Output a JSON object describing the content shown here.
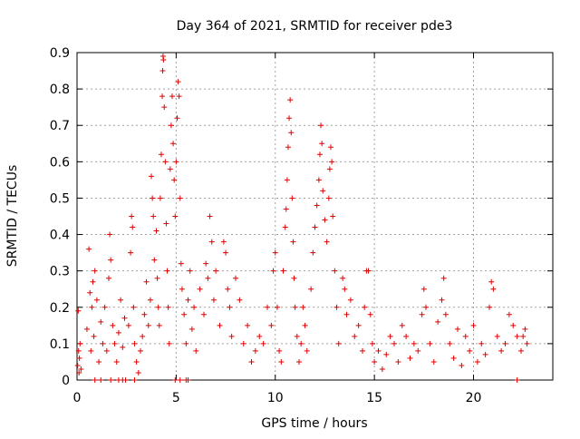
{
  "chart_data": {
    "type": "scatter",
    "title": "Day 364 of 2021, SRMTID for receiver pde3",
    "xlabel": "GPS time / hours",
    "ylabel": "SRMTID / TECUs",
    "xlim": [
      0,
      24
    ],
    "ylim": [
      0,
      0.9
    ],
    "xticks": [
      0,
      5,
      10,
      15,
      20
    ],
    "yticks": [
      0,
      0.1,
      0.2,
      0.3,
      0.4,
      0.5,
      0.6,
      0.7,
      0.8,
      0.9
    ],
    "grid": true,
    "legend": "none",
    "marker": "plus",
    "color": "#e00000",
    "series": [
      {
        "points": [
          [
            0.03,
            0.04
          ],
          [
            0.06,
            0.19
          ],
          [
            0.08,
            0.08
          ],
          [
            0.1,
            0.02
          ],
          [
            0.12,
            0.06
          ],
          [
            0.15,
            0.1
          ],
          [
            0.2,
            0.03
          ],
          [
            0.5,
            0.14
          ],
          [
            0.6,
            0.36
          ],
          [
            0.65,
            0.24
          ],
          [
            0.7,
            0.08
          ],
          [
            0.75,
            0.2
          ],
          [
            0.8,
            0.27
          ],
          [
            0.85,
            0.12
          ],
          [
            0.9,
            0.3
          ],
          [
            1.0,
            0.22
          ],
          [
            1.1,
            0.05
          ],
          [
            1.2,
            0.16
          ],
          [
            1.3,
            0.1
          ],
          [
            1.4,
            0.2
          ],
          [
            1.5,
            0.08
          ],
          [
            1.6,
            0.28
          ],
          [
            1.65,
            0.4
          ],
          [
            1.7,
            0.33
          ],
          [
            1.8,
            0.15
          ],
          [
            1.9,
            0.1
          ],
          [
            2.0,
            0.05
          ],
          [
            2.1,
            0.13
          ],
          [
            2.2,
            0.22
          ],
          [
            2.3,
            0.09
          ],
          [
            2.4,
            0.17
          ],
          [
            0.9,
            0.0
          ],
          [
            1.2,
            0.0
          ],
          [
            1.7,
            0.0
          ],
          [
            2.1,
            0.0
          ],
          [
            2.3,
            0.0
          ],
          [
            2.45,
            0.0
          ],
          [
            2.9,
            0.0
          ],
          [
            4.95,
            0.0
          ],
          [
            5.2,
            0.0
          ],
          [
            5.5,
            0.0
          ],
          [
            5.6,
            0.0
          ],
          [
            22.2,
            0.0
          ],
          [
            2.6,
            0.15
          ],
          [
            2.7,
            0.35
          ],
          [
            2.75,
            0.45
          ],
          [
            2.8,
            0.42
          ],
          [
            2.85,
            0.2
          ],
          [
            2.9,
            0.1
          ],
          [
            3.0,
            0.05
          ],
          [
            3.1,
            0.02
          ],
          [
            3.2,
            0.08
          ],
          [
            3.3,
            0.12
          ],
          [
            3.4,
            0.18
          ],
          [
            3.5,
            0.27
          ],
          [
            3.6,
            0.15
          ],
          [
            3.7,
            0.22
          ],
          [
            3.75,
            0.56
          ],
          [
            3.8,
            0.5
          ],
          [
            3.85,
            0.45
          ],
          [
            3.9,
            0.33
          ],
          [
            4.0,
            0.41
          ],
          [
            4.05,
            0.28
          ],
          [
            4.1,
            0.2
          ],
          [
            4.15,
            0.15
          ],
          [
            4.2,
            0.5
          ],
          [
            4.25,
            0.62
          ],
          [
            4.3,
            0.78
          ],
          [
            4.32,
            0.85
          ],
          [
            4.34,
            0.89
          ],
          [
            4.36,
            0.88
          ],
          [
            4.4,
            0.75
          ],
          [
            4.45,
            0.6
          ],
          [
            4.5,
            0.43
          ],
          [
            4.55,
            0.3
          ],
          [
            4.6,
            0.2
          ],
          [
            4.65,
            0.1
          ],
          [
            4.7,
            0.58
          ],
          [
            4.75,
            0.7
          ],
          [
            4.8,
            0.78
          ],
          [
            4.85,
            0.65
          ],
          [
            4.9,
            0.55
          ],
          [
            4.95,
            0.45
          ],
          [
            5.0,
            0.6
          ],
          [
            5.05,
            0.72
          ],
          [
            5.1,
            0.82
          ],
          [
            5.15,
            0.78
          ],
          [
            5.2,
            0.5
          ],
          [
            5.25,
            0.32
          ],
          [
            5.3,
            0.25
          ],
          [
            5.4,
            0.18
          ],
          [
            5.5,
            0.1
          ],
          [
            5.6,
            0.22
          ],
          [
            5.7,
            0.3
          ],
          [
            5.8,
            0.14
          ],
          [
            5.9,
            0.2
          ],
          [
            6.0,
            0.08
          ],
          [
            6.2,
            0.25
          ],
          [
            6.4,
            0.18
          ],
          [
            6.5,
            0.32
          ],
          [
            6.6,
            0.28
          ],
          [
            6.7,
            0.45
          ],
          [
            6.8,
            0.38
          ],
          [
            6.9,
            0.22
          ],
          [
            7.0,
            0.3
          ],
          [
            7.2,
            0.15
          ],
          [
            7.4,
            0.38
          ],
          [
            7.5,
            0.35
          ],
          [
            7.6,
            0.25
          ],
          [
            7.7,
            0.2
          ],
          [
            7.8,
            0.12
          ],
          [
            8.0,
            0.28
          ],
          [
            8.2,
            0.22
          ],
          [
            8.4,
            0.1
          ],
          [
            8.6,
            0.15
          ],
          [
            8.8,
            0.05
          ],
          [
            9.0,
            0.08
          ],
          [
            9.2,
            0.12
          ],
          [
            9.4,
            0.1
          ],
          [
            9.6,
            0.2
          ],
          [
            9.8,
            0.15
          ],
          [
            9.9,
            0.3
          ],
          [
            10.0,
            0.35
          ],
          [
            10.1,
            0.2
          ],
          [
            10.2,
            0.08
          ],
          [
            10.3,
            0.05
          ],
          [
            10.4,
            0.3
          ],
          [
            10.5,
            0.42
          ],
          [
            10.55,
            0.47
          ],
          [
            10.6,
            0.55
          ],
          [
            10.65,
            0.64
          ],
          [
            10.7,
            0.72
          ],
          [
            10.75,
            0.77
          ],
          [
            10.8,
            0.68
          ],
          [
            10.85,
            0.5
          ],
          [
            10.9,
            0.38
          ],
          [
            10.95,
            0.28
          ],
          [
            11.0,
            0.2
          ],
          [
            11.1,
            0.12
          ],
          [
            11.2,
            0.05
          ],
          [
            11.3,
            0.1
          ],
          [
            11.4,
            0.2
          ],
          [
            11.5,
            0.15
          ],
          [
            11.6,
            0.08
          ],
          [
            11.8,
            0.25
          ],
          [
            11.9,
            0.35
          ],
          [
            12.0,
            0.42
          ],
          [
            12.1,
            0.48
          ],
          [
            12.2,
            0.55
          ],
          [
            12.25,
            0.62
          ],
          [
            12.3,
            0.7
          ],
          [
            12.35,
            0.65
          ],
          [
            12.4,
            0.52
          ],
          [
            12.5,
            0.44
          ],
          [
            12.6,
            0.38
          ],
          [
            12.7,
            0.5
          ],
          [
            12.75,
            0.58
          ],
          [
            12.8,
            0.64
          ],
          [
            12.85,
            0.6
          ],
          [
            12.9,
            0.45
          ],
          [
            13.0,
            0.3
          ],
          [
            13.1,
            0.2
          ],
          [
            13.2,
            0.1
          ],
          [
            13.4,
            0.28
          ],
          [
            13.5,
            0.25
          ],
          [
            13.6,
            0.18
          ],
          [
            13.8,
            0.22
          ],
          [
            14.0,
            0.12
          ],
          [
            14.2,
            0.15
          ],
          [
            14.4,
            0.08
          ],
          [
            14.5,
            0.2
          ],
          [
            14.6,
            0.3
          ],
          [
            14.7,
            0.3
          ],
          [
            14.8,
            0.18
          ],
          [
            14.9,
            0.1
          ],
          [
            15.0,
            0.05
          ],
          [
            15.2,
            0.08
          ],
          [
            15.4,
            0.03
          ],
          [
            15.6,
            0.07
          ],
          [
            15.8,
            0.12
          ],
          [
            16.0,
            0.1
          ],
          [
            16.2,
            0.05
          ],
          [
            16.4,
            0.15
          ],
          [
            16.6,
            0.12
          ],
          [
            16.8,
            0.06
          ],
          [
            17.0,
            0.1
          ],
          [
            17.2,
            0.08
          ],
          [
            17.4,
            0.18
          ],
          [
            17.5,
            0.25
          ],
          [
            17.6,
            0.2
          ],
          [
            17.8,
            0.1
          ],
          [
            18.0,
            0.05
          ],
          [
            18.2,
            0.16
          ],
          [
            18.4,
            0.22
          ],
          [
            18.5,
            0.28
          ],
          [
            18.6,
            0.18
          ],
          [
            18.8,
            0.1
          ],
          [
            19.0,
            0.06
          ],
          [
            19.2,
            0.14
          ],
          [
            19.4,
            0.04
          ],
          [
            19.6,
            0.12
          ],
          [
            19.8,
            0.08
          ],
          [
            20.0,
            0.15
          ],
          [
            20.2,
            0.05
          ],
          [
            20.4,
            0.1
          ],
          [
            20.6,
            0.07
          ],
          [
            20.8,
            0.2
          ],
          [
            20.9,
            0.27
          ],
          [
            21.0,
            0.25
          ],
          [
            21.2,
            0.12
          ],
          [
            21.4,
            0.08
          ],
          [
            21.6,
            0.1
          ],
          [
            21.8,
            0.18
          ],
          [
            22.0,
            0.15
          ],
          [
            22.2,
            0.12
          ],
          [
            22.4,
            0.08
          ],
          [
            22.5,
            0.12
          ],
          [
            22.6,
            0.14
          ],
          [
            22.7,
            0.1
          ]
        ]
      }
    ]
  }
}
